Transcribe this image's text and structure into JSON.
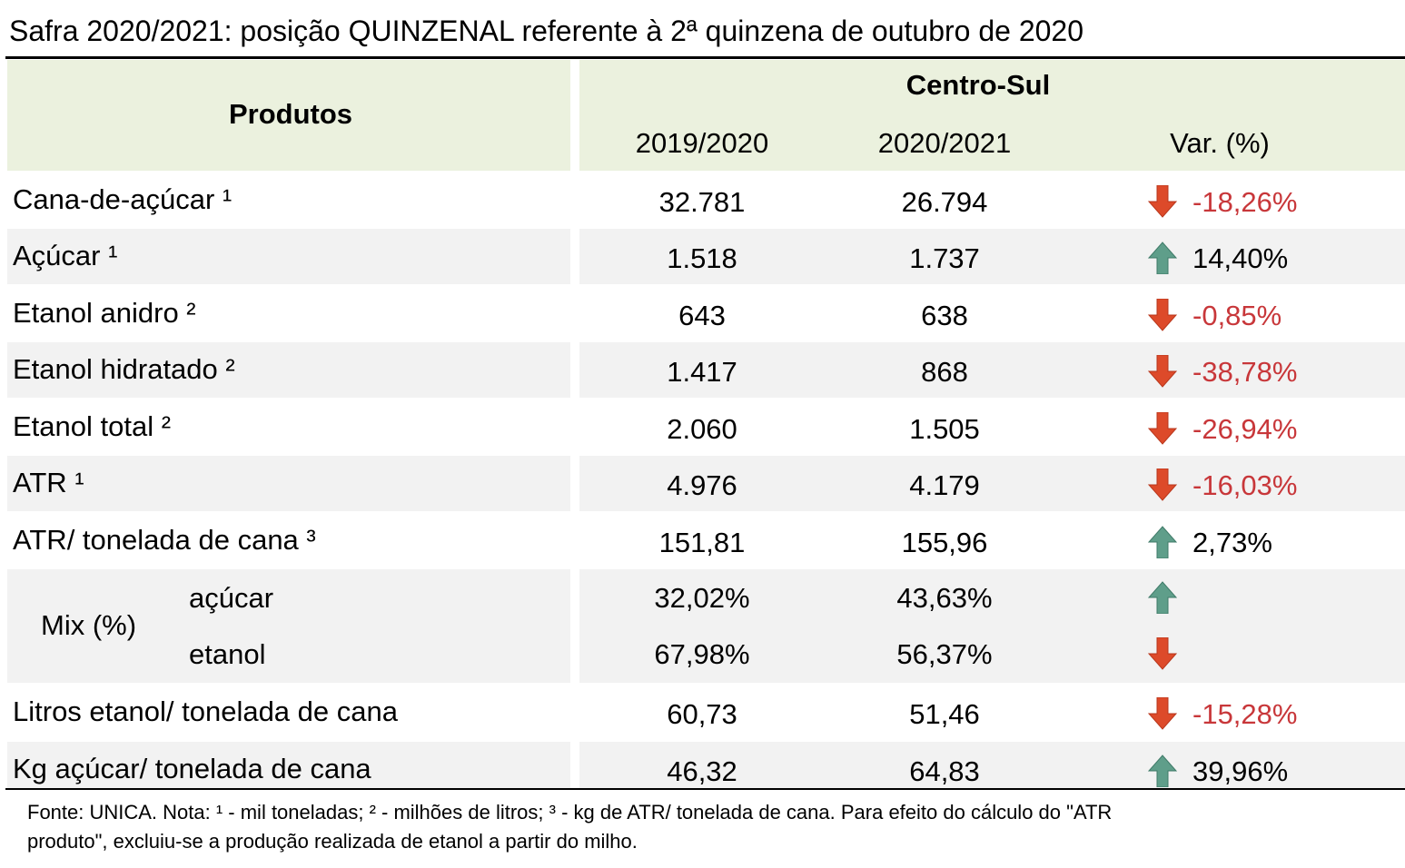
{
  "title": "Safra 2020/2021: posição QUINZENAL referente à 2ª quinzena de outubro de 2020",
  "table": {
    "header": {
      "products": "Produtos",
      "region": "Centro-Sul",
      "columns": [
        "2019/2020",
        "2020/2021",
        "Var. (%)"
      ]
    },
    "rows": [
      {
        "label": "Cana-de-açúcar ¹",
        "values": [
          "32.781",
          "26.794",
          "-18,26%"
        ]
      },
      {
        "label": "Açúcar ¹",
        "values": [
          "1.518",
          "1.737",
          "14,40%"
        ]
      },
      {
        "label": "Etanol anidro ²",
        "values": [
          "643",
          "638",
          "-0,85%"
        ]
      },
      {
        "label": "Etanol hidratado ²",
        "values": [
          "1.417",
          "868",
          "-38,78%"
        ]
      },
      {
        "label": "Etanol total ²",
        "values": [
          "2.060",
          "1.505",
          "-26,94%"
        ]
      },
      {
        "label": "ATR ¹",
        "values": [
          "4.976",
          "4.179",
          "-16,03%"
        ]
      },
      {
        "label": "ATR/ tonelada de cana ³",
        "values": [
          "151,81",
          "155,96",
          "2,73%"
        ]
      },
      {
        "label": "Mix (%)",
        "subrows": [
          {
            "label": "açúcar",
            "values": [
              "32,02%",
              "43,63%"
            ]
          },
          {
            "label": "etanol",
            "values": [
              "67,98%",
              "56,37%"
            ]
          }
        ]
      },
      {
        "label": "Litros etanol/ tonelada de cana",
        "values": [
          "60,73",
          "51,46",
          "-15,28%"
        ]
      },
      {
        "label": "Kg açúcar/ tonelada de cana",
        "values": [
          "46,32",
          "64,83",
          "39,96%"
        ]
      }
    ]
  },
  "footnote": [
    "Fonte: UNICA. Nota: ¹ - mil toneladas; ² - milhões de litros; ³ - kg de ATR/ tonelada de cana. Para efeito do cálculo do \"ATR",
    "produto\", excluiu-se a produção realizada de etanol a partir do milho."
  ]
}
